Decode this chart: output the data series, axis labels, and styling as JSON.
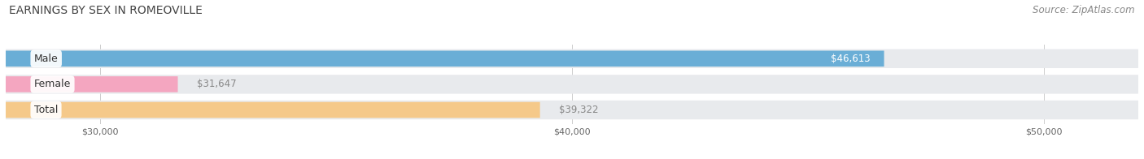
{
  "title": "EARNINGS BY SEX IN ROMEOVILLE",
  "source": "Source: ZipAtlas.com",
  "categories": [
    "Male",
    "Female",
    "Total"
  ],
  "values": [
    46613,
    31647,
    39322
  ],
  "bar_colors": [
    "#6aaed6",
    "#f4a6c0",
    "#f5c98a"
  ],
  "label_colors": [
    "white",
    "#888888",
    "#888888"
  ],
  "label_positions": [
    "inside_right",
    "outside_right",
    "outside_right"
  ],
  "value_labels": [
    "$46,613",
    "$31,647",
    "$39,322"
  ],
  "x_min": 28000,
  "x_max": 52000,
  "x_ticks": [
    30000,
    40000,
    50000
  ],
  "x_tick_labels": [
    "$30,000",
    "$40,000",
    "$50,000"
  ],
  "background_color": "#ffffff",
  "bar_background_color": "#e8eaed",
  "title_fontsize": 10,
  "source_fontsize": 8.5,
  "bar_height": 0.62,
  "bar_label_fontsize": 8.5,
  "category_label_fontsize": 9
}
